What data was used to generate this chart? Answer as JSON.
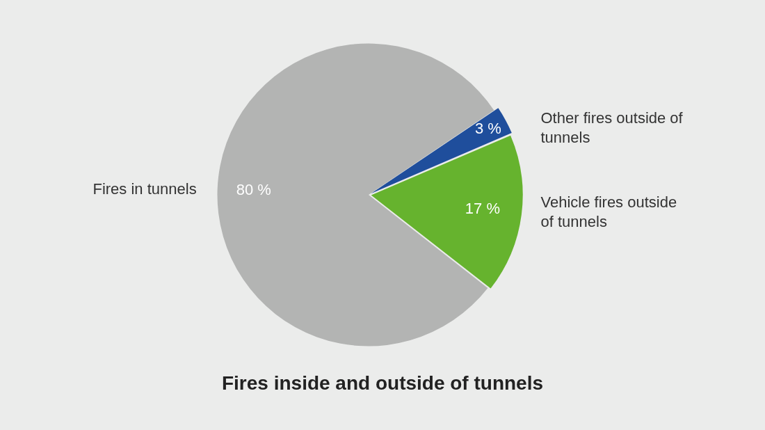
{
  "chart_data": {
    "type": "pie",
    "title": "Fires inside and outside of tunnels",
    "categories": [
      "Other fires outside of tunnels",
      "Vehicle fires outside of tunnels",
      "Fires in tunnels"
    ],
    "values": [
      3,
      17,
      80
    ],
    "colors": [
      "#1f4e9c",
      "#66b32e",
      "#b3b4b3"
    ],
    "value_labels": [
      "3 %",
      "17 %",
      "80 %"
    ],
    "legend": false
  }
}
